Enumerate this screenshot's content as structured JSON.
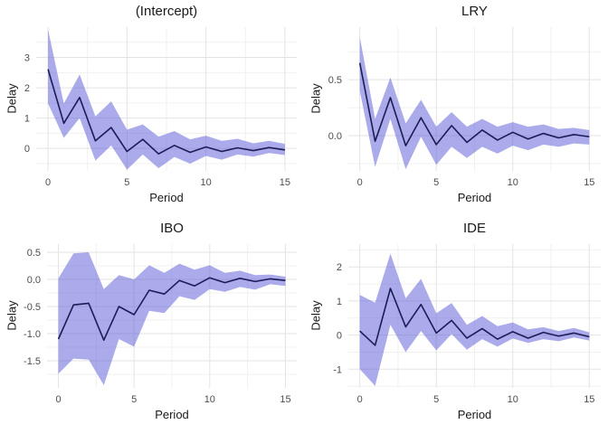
{
  "style": {
    "background": "#ffffff",
    "grid_major_color": "#e3e3e3",
    "grid_minor_color": "#f0f0f0",
    "ribbon_fill": "#5858d8",
    "ribbon_opacity": 0.5,
    "line_color": "#1c1c55",
    "tick_label_color": "#4d4d4d",
    "text_color": "#1a1a1a"
  },
  "chart_data": [
    {
      "type": "line",
      "title": "(Intercept)",
      "xlabel": "Period",
      "ylabel": "Delay",
      "x": [
        0,
        1,
        2,
        3,
        4,
        5,
        6,
        7,
        8,
        9,
        10,
        11,
        12,
        13,
        14,
        15
      ],
      "series": [
        {
          "name": "delay-response",
          "values": [
            2.61,
            0.83,
            1.68,
            0.25,
            0.69,
            -0.1,
            0.3,
            -0.18,
            0.1,
            -0.13,
            0.05,
            -0.1,
            0.02,
            -0.07,
            0.03,
            -0.05
          ]
        }
      ],
      "band": {
        "name": "confidence-interval",
        "upper": [
          3.92,
          1.48,
          2.44,
          1.06,
          1.55,
          0.62,
          0.79,
          0.39,
          0.57,
          0.3,
          0.42,
          0.25,
          0.32,
          0.17,
          0.25,
          0.15
        ],
        "lower": [
          1.48,
          0.35,
          1.0,
          -0.4,
          0.1,
          -0.7,
          -0.2,
          -0.65,
          -0.28,
          -0.5,
          -0.25,
          -0.37,
          -0.2,
          -0.27,
          -0.15,
          -0.22
        ]
      },
      "xticks": {
        "values": [
          0,
          5,
          10,
          15
        ],
        "labels": [
          "0",
          "5",
          "10",
          "15"
        ]
      },
      "yticks": {
        "values": [
          0,
          1,
          2,
          3
        ],
        "labels": [
          "0",
          "1",
          "2",
          "3"
        ]
      },
      "xlim": [
        -0.75,
        15.75
      ],
      "ylim": [
        -0.74,
        4.0
      ],
      "grid": true,
      "legend": false
    },
    {
      "type": "line",
      "title": "LRY",
      "xlabel": "Period",
      "ylabel": "Delay",
      "x": [
        0,
        1,
        2,
        3,
        4,
        5,
        6,
        7,
        8,
        9,
        10,
        11,
        12,
        13,
        14,
        15
      ],
      "series": [
        {
          "name": "delay-response",
          "values": [
            0.65,
            -0.05,
            0.34,
            -0.09,
            0.16,
            -0.08,
            0.09,
            -0.06,
            0.05,
            -0.04,
            0.03,
            -0.03,
            0.02,
            -0.02,
            0.01,
            -0.01
          ]
        }
      ],
      "band": {
        "name": "confidence-interval",
        "upper": [
          0.88,
          0.15,
          0.52,
          0.11,
          0.32,
          0.08,
          0.21,
          0.08,
          0.15,
          0.08,
          0.12,
          0.08,
          0.1,
          0.06,
          0.07,
          0.05
        ],
        "lower": [
          0.4,
          -0.28,
          0.15,
          -0.3,
          -0.01,
          -0.26,
          -0.1,
          -0.2,
          -0.1,
          -0.16,
          -0.09,
          -0.13,
          -0.08,
          -0.1,
          -0.07,
          -0.08
        ]
      },
      "xticks": {
        "values": [
          0,
          5,
          10,
          15
        ],
        "labels": [
          "0",
          "5",
          "10",
          "15"
        ]
      },
      "yticks": {
        "values": [
          0.0,
          0.5
        ],
        "labels": [
          "0.0",
          "0.5"
        ]
      },
      "xlim": [
        -0.75,
        15.75
      ],
      "ylim": [
        -0.315,
        0.97
      ],
      "grid": true,
      "legend": false
    },
    {
      "type": "line",
      "title": "IBO",
      "xlabel": "Period",
      "ylabel": "Delay",
      "x": [
        0,
        1,
        2,
        3,
        4,
        5,
        6,
        7,
        8,
        9,
        10,
        11,
        12,
        13,
        14,
        15
      ],
      "series": [
        {
          "name": "delay-response",
          "values": [
            -1.1,
            -0.47,
            -0.44,
            -1.12,
            -0.5,
            -0.65,
            -0.2,
            -0.27,
            -0.02,
            -0.12,
            0.03,
            -0.06,
            0.02,
            -0.04,
            0.01,
            -0.02
          ]
        }
      ],
      "band": {
        "name": "confidence-interval",
        "upper": [
          0.02,
          0.48,
          0.5,
          -0.18,
          0.08,
          0.0,
          0.26,
          0.12,
          0.29,
          0.18,
          0.26,
          0.12,
          0.16,
          0.08,
          0.09,
          0.05
        ],
        "lower": [
          -1.74,
          -1.46,
          -1.48,
          -1.95,
          -1.1,
          -1.24,
          -0.58,
          -0.62,
          -0.31,
          -0.38,
          -0.18,
          -0.23,
          -0.14,
          -0.19,
          -0.09,
          -0.12
        ]
      },
      "xticks": {
        "values": [
          0,
          5,
          10,
          15
        ],
        "labels": [
          "0",
          "5",
          "10",
          "15"
        ]
      },
      "yticks": {
        "values": [
          0.5,
          0.0,
          -0.5,
          -1.0,
          -1.5
        ],
        "labels": [
          "0.5",
          "0.0",
          "-0.5",
          "-1.0",
          "-1.5"
        ]
      },
      "xlim": [
        -0.75,
        15.75
      ],
      "ylim": [
        -2.0,
        0.65
      ],
      "grid": true,
      "legend": false
    },
    {
      "type": "line",
      "title": "IDE",
      "xlabel": "Period",
      "ylabel": "Delay",
      "x": [
        0,
        1,
        2,
        3,
        4,
        5,
        6,
        7,
        8,
        9,
        10,
        11,
        12,
        13,
        14,
        15
      ],
      "series": [
        {
          "name": "delay-response",
          "values": [
            0.12,
            -0.3,
            1.37,
            0.24,
            0.9,
            0.06,
            0.43,
            -0.09,
            0.19,
            -0.12,
            0.1,
            -0.09,
            0.08,
            -0.03,
            0.06,
            -0.05
          ]
        }
      ],
      "band": {
        "name": "confidence-interval",
        "upper": [
          1.18,
          0.95,
          2.39,
          1.08,
          1.65,
          0.64,
          0.94,
          0.3,
          0.56,
          0.26,
          0.37,
          0.17,
          0.23,
          0.12,
          0.21,
          0.08
        ],
        "lower": [
          -1.0,
          -1.49,
          0.3,
          -0.5,
          0.12,
          -0.45,
          0.03,
          -0.43,
          -0.12,
          -0.34,
          -0.1,
          -0.23,
          -0.12,
          -0.18,
          -0.07,
          -0.16
        ]
      },
      "xticks": {
        "values": [
          0,
          5,
          10,
          15
        ],
        "labels": [
          "0",
          "5",
          "10",
          "15"
        ]
      },
      "yticks": {
        "values": [
          2,
          1,
          0,
          -1
        ],
        "labels": [
          "2",
          "1",
          "0",
          "-1"
        ]
      },
      "xlim": [
        -0.75,
        15.75
      ],
      "ylim": [
        -1.55,
        2.67
      ],
      "grid": true,
      "legend": false
    }
  ]
}
